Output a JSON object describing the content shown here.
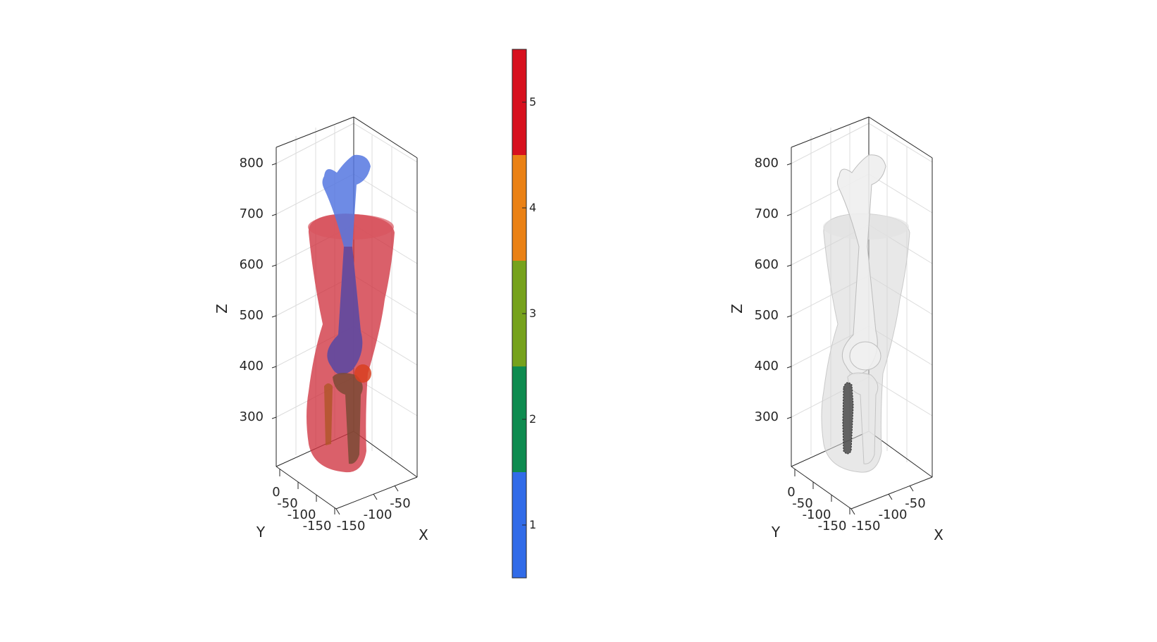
{
  "chart_data": [
    {
      "type": "3d-surface",
      "panel": "left",
      "zlabel": "Z",
      "ylabel": "Y",
      "xlabel": "X",
      "zticks": [
        "800",
        "700",
        "600",
        "500",
        "400",
        "300"
      ],
      "yticks": [
        "0",
        "-50",
        "-100",
        "-150"
      ],
      "xticks": [
        "-150",
        "-100",
        "-50"
      ],
      "colors": {
        "skin": "#cf3340",
        "femur": "#5577e0",
        "tibia": "#7a4a35",
        "patella": "#d84020"
      }
    },
    {
      "type": "colorbar",
      "ticks": [
        "5",
        "4",
        "3",
        "2",
        "1"
      ],
      "colors": [
        "#d7101e",
        "#ea8115",
        "#76a21c",
        "#0e8b4f",
        "#316be8"
      ]
    },
    {
      "type": "3d-surface",
      "panel": "right",
      "zlabel": "Z",
      "ylabel": "Y",
      "xlabel": "X",
      "zticks": [
        "800",
        "700",
        "600",
        "500",
        "400",
        "300"
      ],
      "yticks": [
        "0",
        "-50",
        "-100",
        "-150"
      ],
      "xticks": [
        "-150",
        "-100",
        "-50"
      ],
      "colors": {
        "skin": "#d9d9d9",
        "bone": "#e4e4e4",
        "marker": "#3a3a3a"
      }
    }
  ]
}
